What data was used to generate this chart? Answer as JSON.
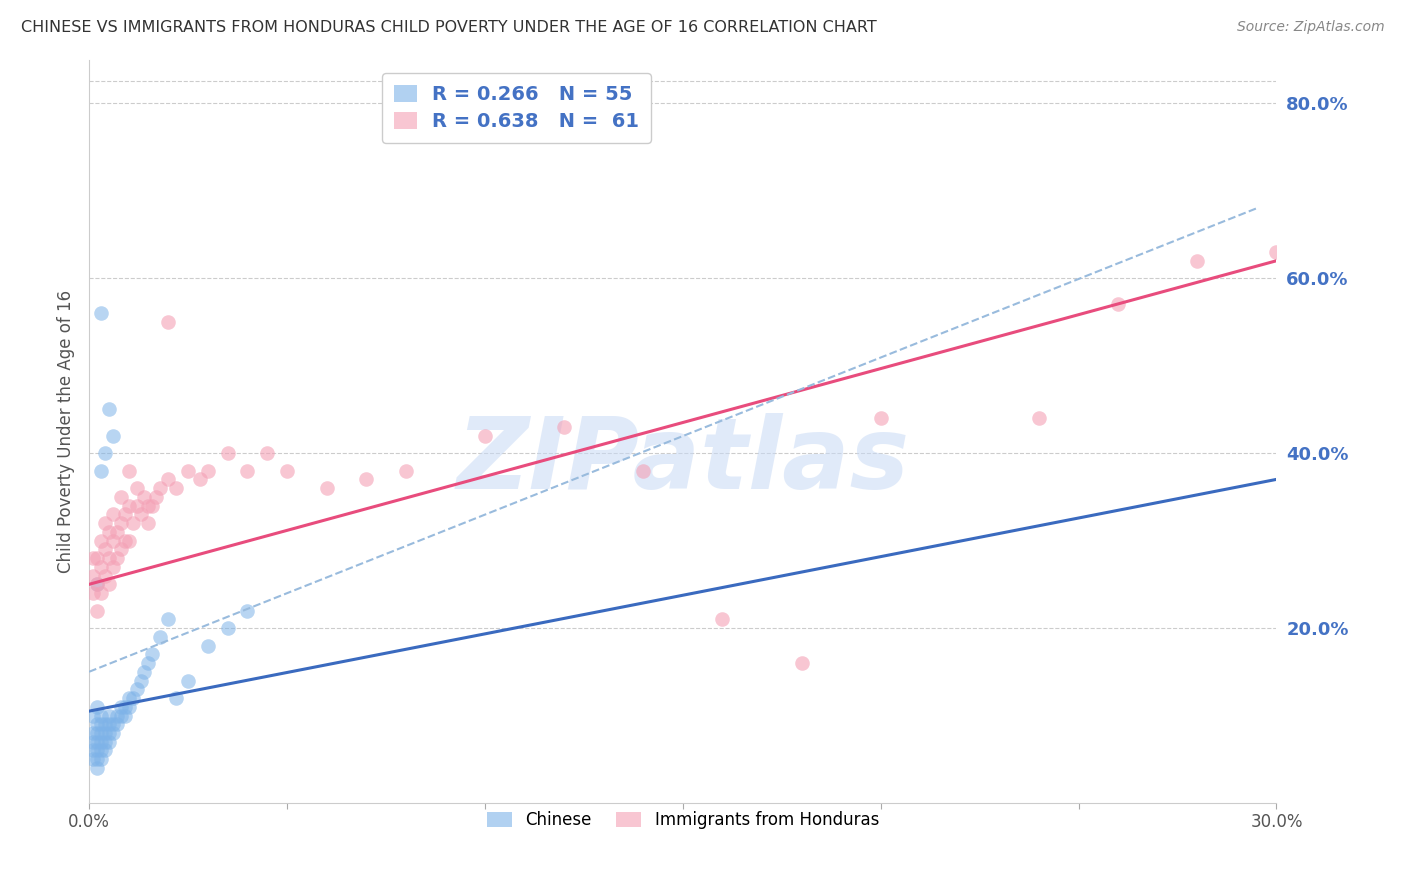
{
  "title": "CHINESE VS IMMIGRANTS FROM HONDURAS CHILD POVERTY UNDER THE AGE OF 16 CORRELATION CHART",
  "source": "Source: ZipAtlas.com",
  "ylabel": "Child Poverty Under the Age of 16",
  "xlim": [
    0.0,
    0.3
  ],
  "ylim": [
    0.0,
    0.85
  ],
  "xticks": [
    0.0,
    0.05,
    0.1,
    0.15,
    0.2,
    0.25,
    0.3
  ],
  "xticklabels": [
    "0.0%",
    "",
    "",
    "",
    "",
    "",
    "30.0%"
  ],
  "yticks_right": [
    0.2,
    0.4,
    0.6,
    0.8
  ],
  "ytick_labels_right": [
    "20.0%",
    "40.0%",
    "60.0%",
    "80.0%"
  ],
  "chinese_color": "#7eb3e8",
  "honduras_color": "#f4a0b5",
  "chinese_line_color": "#3a6abf",
  "honduras_line_color": "#e84c7d",
  "dashed_line_color": "#99bbdd",
  "right_tick_color": "#4472c4",
  "watermark_color": "#c8daf5",
  "chinese_line_x": [
    0.0,
    0.3
  ],
  "chinese_line_y": [
    0.105,
    0.37
  ],
  "honduras_line_x": [
    0.0,
    0.3
  ],
  "honduras_line_y": [
    0.25,
    0.62
  ],
  "dashed_line_x": [
    0.0,
    0.295
  ],
  "dashed_line_y": [
    0.15,
    0.68
  ],
  "chinese_x": [
    0.001,
    0.001,
    0.001,
    0.001,
    0.001,
    0.002,
    0.002,
    0.002,
    0.002,
    0.002,
    0.002,
    0.002,
    0.003,
    0.003,
    0.003,
    0.003,
    0.003,
    0.003,
    0.004,
    0.004,
    0.004,
    0.004,
    0.005,
    0.005,
    0.005,
    0.005,
    0.006,
    0.006,
    0.007,
    0.007,
    0.008,
    0.008,
    0.009,
    0.009,
    0.01,
    0.01,
    0.011,
    0.012,
    0.013,
    0.014,
    0.015,
    0.016,
    0.018,
    0.02,
    0.022,
    0.025,
    0.03,
    0.035,
    0.04,
    0.002,
    0.003,
    0.004,
    0.003,
    0.005,
    0.006
  ],
  "chinese_y": [
    0.05,
    0.06,
    0.07,
    0.08,
    0.1,
    0.04,
    0.05,
    0.06,
    0.07,
    0.08,
    0.09,
    0.11,
    0.05,
    0.06,
    0.07,
    0.08,
    0.09,
    0.1,
    0.06,
    0.07,
    0.08,
    0.09,
    0.07,
    0.08,
    0.09,
    0.1,
    0.08,
    0.09,
    0.09,
    0.1,
    0.1,
    0.11,
    0.1,
    0.11,
    0.11,
    0.12,
    0.12,
    0.13,
    0.14,
    0.15,
    0.16,
    0.17,
    0.19,
    0.21,
    0.12,
    0.14,
    0.18,
    0.2,
    0.22,
    0.25,
    0.56,
    0.4,
    0.38,
    0.45,
    0.42
  ],
  "honduras_x": [
    0.001,
    0.001,
    0.001,
    0.002,
    0.002,
    0.002,
    0.003,
    0.003,
    0.003,
    0.004,
    0.004,
    0.004,
    0.005,
    0.005,
    0.005,
    0.006,
    0.006,
    0.006,
    0.007,
    0.007,
    0.008,
    0.008,
    0.009,
    0.009,
    0.01,
    0.01,
    0.011,
    0.012,
    0.013,
    0.014,
    0.015,
    0.016,
    0.017,
    0.018,
    0.02,
    0.022,
    0.025,
    0.028,
    0.03,
    0.035,
    0.04,
    0.045,
    0.05,
    0.06,
    0.07,
    0.08,
    0.1,
    0.12,
    0.14,
    0.16,
    0.18,
    0.2,
    0.24,
    0.26,
    0.28,
    0.3,
    0.008,
    0.01,
    0.012,
    0.015,
    0.02
  ],
  "honduras_y": [
    0.24,
    0.26,
    0.28,
    0.22,
    0.25,
    0.28,
    0.24,
    0.27,
    0.3,
    0.26,
    0.29,
    0.32,
    0.25,
    0.28,
    0.31,
    0.27,
    0.3,
    0.33,
    0.28,
    0.31,
    0.29,
    0.32,
    0.3,
    0.33,
    0.3,
    0.34,
    0.32,
    0.34,
    0.33,
    0.35,
    0.32,
    0.34,
    0.35,
    0.36,
    0.37,
    0.36,
    0.38,
    0.37,
    0.38,
    0.4,
    0.38,
    0.4,
    0.38,
    0.36,
    0.37,
    0.38,
    0.42,
    0.43,
    0.38,
    0.21,
    0.16,
    0.44,
    0.44,
    0.57,
    0.62,
    0.63,
    0.35,
    0.38,
    0.36,
    0.34,
    0.55
  ]
}
